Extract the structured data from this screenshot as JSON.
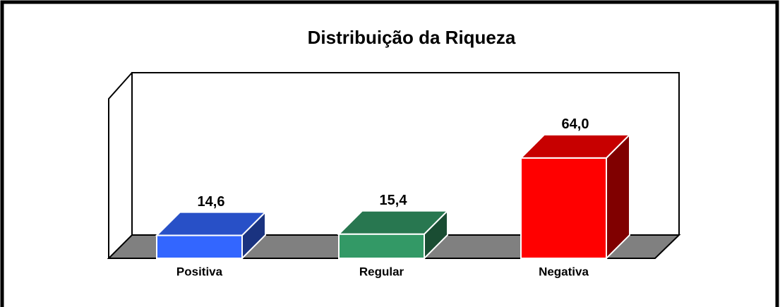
{
  "chart_data": {
    "type": "bar3d",
    "title": "Distribuição da Riqueza",
    "categories": [
      "Positiva",
      "Regular",
      "Negativa"
    ],
    "values": [
      14.6,
      15.4,
      64.0
    ],
    "value_labels": [
      "14,6",
      "15,4",
      "64,0"
    ],
    "colors": [
      "#3366ff",
      "#339966",
      "#ff0000"
    ]
  }
}
